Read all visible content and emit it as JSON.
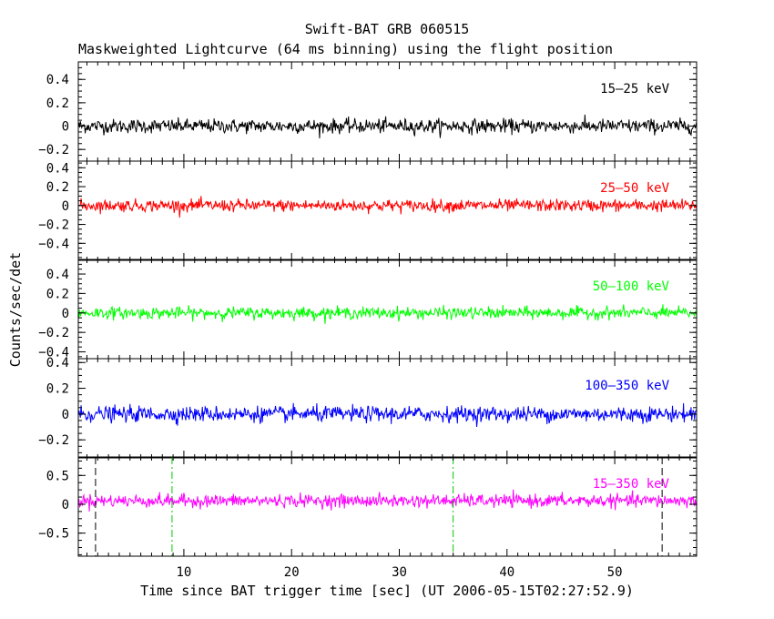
{
  "figure": {
    "title": "Swift-BAT GRB 060515",
    "subtitle": "Maskweighted Lightcurve (64 ms binning) using the flight position",
    "xlabel": "Time since BAT trigger time [sec] (UT 2006-05-15T02:27:52.9)",
    "ylabel": "Counts/sec/det"
  },
  "chart_data": [
    {
      "type": "line",
      "label": "15–25 keV",
      "color": "#000000",
      "xlim": [
        0.2,
        57.6
      ],
      "ylim": [
        -0.3,
        0.55
      ],
      "yticks": [
        -0.2,
        0,
        0.2,
        0.4
      ],
      "ytick_labels": [
        "−0.2",
        "0",
        "0.2",
        "0.4"
      ],
      "xticks": [
        10,
        20,
        30,
        40,
        50
      ],
      "xtick_labels": [
        "10",
        "20",
        "30",
        "40",
        "50"
      ],
      "noise_sigma": 0.03,
      "time_bin_sec": 0.064
    },
    {
      "type": "line",
      "label": "25–50 keV",
      "color": "#ff0000",
      "xlim": [
        0.2,
        57.6
      ],
      "ylim": [
        -0.58,
        0.47
      ],
      "yticks": [
        -0.4,
        -0.2,
        0,
        0.2,
        0.4
      ],
      "ytick_labels": [
        "−0.4",
        "−0.2",
        "0",
        "0.2",
        "0.4"
      ],
      "noise_sigma": 0.032,
      "time_bin_sec": 0.064
    },
    {
      "type": "line",
      "label": "50–100 keV",
      "color": "#00ff00",
      "xlim": [
        0.2,
        57.6
      ],
      "ylim": [
        -0.47,
        0.55
      ],
      "yticks": [
        -0.4,
        -0.2,
        0,
        0.2,
        0.4
      ],
      "ytick_labels": [
        "−0.4",
        "−0.2",
        "0",
        "0.2",
        "0.4"
      ],
      "noise_sigma": 0.03,
      "time_bin_sec": 0.064
    },
    {
      "type": "line",
      "label": "100–350 keV",
      "color": "#0000ff",
      "xlim": [
        0.2,
        57.6
      ],
      "ylim": [
        -0.34,
        0.43
      ],
      "yticks": [
        -0.2,
        0,
        0.2,
        0.4
      ],
      "ytick_labels": [
        "−0.2",
        "0",
        "0.2",
        "0.4"
      ],
      "noise_sigma": 0.03,
      "time_bin_sec": 0.064
    },
    {
      "type": "line",
      "label": "15–350 keV",
      "color": "#ff00ff",
      "xlim": [
        0.2,
        57.6
      ],
      "ylim": [
        -0.9,
        0.82
      ],
      "yticks": [
        -0.5,
        0,
        0.5
      ],
      "ytick_labels": [
        "−0.5",
        "0",
        "0.5"
      ],
      "noise_sigma": 0.055,
      "offset": 0.06,
      "time_bin_sec": 0.064,
      "vlines": [
        {
          "x": 1.8,
          "style": "dashed",
          "color": "#000000"
        },
        {
          "x": 8.9,
          "style": "dashdot",
          "color": "#00cc00"
        },
        {
          "x": 35.0,
          "style": "dashdot",
          "color": "#00cc00"
        },
        {
          "x": 54.4,
          "style": "dashed",
          "color": "#000000"
        }
      ]
    }
  ]
}
